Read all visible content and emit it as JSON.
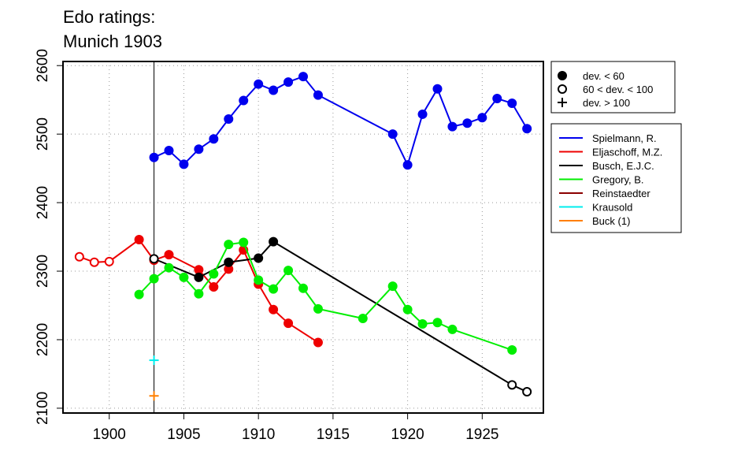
{
  "chart_data": {
    "type": "line",
    "title": [
      "Edo ratings:",
      "Munich 1903"
    ],
    "xlabel": "",
    "ylabel": "",
    "xlim": [
      1896.9,
      1929.1
    ],
    "ylim": [
      2093,
      2606
    ],
    "xticks": [
      1900,
      1905,
      1910,
      1915,
      1920,
      1925
    ],
    "yticks": [
      2100,
      2200,
      2300,
      2400,
      2500,
      2600
    ],
    "grid": true,
    "event_year": 1903,
    "marker_legend": [
      {
        "label": "dev. < 60",
        "marker": "filled"
      },
      {
        "label": "60 < dev. < 100",
        "marker": "open"
      },
      {
        "label": "dev. > 100",
        "marker": "plus"
      }
    ],
    "series": [
      {
        "name": "Spielmann, R.",
        "color": "#0000ee",
        "points": [
          {
            "x": 1903,
            "y": 2466,
            "m": "filled"
          },
          {
            "x": 1904,
            "y": 2476,
            "m": "filled"
          },
          {
            "x": 1905,
            "y": 2456,
            "m": "filled"
          },
          {
            "x": 1906,
            "y": 2478,
            "m": "filled"
          },
          {
            "x": 1907,
            "y": 2493,
            "m": "filled"
          },
          {
            "x": 1908,
            "y": 2522,
            "m": "filled"
          },
          {
            "x": 1909,
            "y": 2549,
            "m": "filled"
          },
          {
            "x": 1910,
            "y": 2573,
            "m": "filled"
          },
          {
            "x": 1911,
            "y": 2564,
            "m": "filled"
          },
          {
            "x": 1912,
            "y": 2576,
            "m": "filled"
          },
          {
            "x": 1913,
            "y": 2584,
            "m": "filled"
          },
          {
            "x": 1914,
            "y": 2557,
            "m": "filled"
          },
          {
            "x": 1919,
            "y": 2500,
            "m": "filled"
          },
          {
            "x": 1920,
            "y": 2455,
            "m": "filled"
          },
          {
            "x": 1921,
            "y": 2529,
            "m": "filled"
          },
          {
            "x": 1922,
            "y": 2566,
            "m": "filled"
          },
          {
            "x": 1923,
            "y": 2511,
            "m": "filled"
          },
          {
            "x": 1924,
            "y": 2516,
            "m": "filled"
          },
          {
            "x": 1925,
            "y": 2524,
            "m": "filled"
          },
          {
            "x": 1926,
            "y": 2552,
            "m": "filled"
          },
          {
            "x": 1927,
            "y": 2545,
            "m": "filled"
          },
          {
            "x": 1928,
            "y": 2508,
            "m": "filled"
          }
        ]
      },
      {
        "name": "Eljaschoff, M.Z.",
        "color": "#ee0000",
        "points": [
          {
            "x": 1898,
            "y": 2321,
            "m": "open"
          },
          {
            "x": 1899,
            "y": 2313,
            "m": "open"
          },
          {
            "x": 1900,
            "y": 2314,
            "m": "open"
          },
          {
            "x": 1902,
            "y": 2346,
            "m": "filled"
          },
          {
            "x": 1903,
            "y": 2316,
            "m": "filled"
          },
          {
            "x": 1904,
            "y": 2324,
            "m": "filled"
          },
          {
            "x": 1906,
            "y": 2302,
            "m": "filled"
          },
          {
            "x": 1907,
            "y": 2277,
            "m": "filled"
          },
          {
            "x": 1908,
            "y": 2303,
            "m": "filled"
          },
          {
            "x": 1909,
            "y": 2331,
            "m": "filled"
          },
          {
            "x": 1910,
            "y": 2281,
            "m": "filled"
          },
          {
            "x": 1911,
            "y": 2244,
            "m": "filled"
          },
          {
            "x": 1912,
            "y": 2224,
            "m": "filled"
          },
          {
            "x": 1914,
            "y": 2196,
            "m": "filled"
          }
        ]
      },
      {
        "name": "Busch, E.J.C.",
        "color": "#000000",
        "points": [
          {
            "x": 1903,
            "y": 2318,
            "m": "open"
          },
          {
            "x": 1906,
            "y": 2291,
            "m": "filled"
          },
          {
            "x": 1908,
            "y": 2313,
            "m": "filled"
          },
          {
            "x": 1910,
            "y": 2319,
            "m": "filled"
          },
          {
            "x": 1911,
            "y": 2343,
            "m": "filled"
          },
          {
            "x": 1927,
            "y": 2134,
            "m": "open"
          },
          {
            "x": 1928,
            "y": 2124,
            "m": "open"
          }
        ]
      },
      {
        "name": "Gregory, B.",
        "color": "#00ee00",
        "points": [
          {
            "x": 1902,
            "y": 2266,
            "m": "filled"
          },
          {
            "x": 1903,
            "y": 2289,
            "m": "filled"
          },
          {
            "x": 1904,
            "y": 2305,
            "m": "filled"
          },
          {
            "x": 1905,
            "y": 2291,
            "m": "filled"
          },
          {
            "x": 1906,
            "y": 2267,
            "m": "filled"
          },
          {
            "x": 1907,
            "y": 2296,
            "m": "filled"
          },
          {
            "x": 1908,
            "y": 2339,
            "m": "filled"
          },
          {
            "x": 1909,
            "y": 2342,
            "m": "filled"
          },
          {
            "x": 1910,
            "y": 2287,
            "m": "filled"
          },
          {
            "x": 1911,
            "y": 2274,
            "m": "filled"
          },
          {
            "x": 1912,
            "y": 2301,
            "m": "filled"
          },
          {
            "x": 1913,
            "y": 2275,
            "m": "filled"
          },
          {
            "x": 1914,
            "y": 2245,
            "m": "filled"
          },
          {
            "x": 1917,
            "y": 2231,
            "m": "filled"
          },
          {
            "x": 1919,
            "y": 2278,
            "m": "filled"
          },
          {
            "x": 1920,
            "y": 2244,
            "m": "filled"
          },
          {
            "x": 1921,
            "y": 2223,
            "m": "filled"
          },
          {
            "x": 1922,
            "y": 2225,
            "m": "filled"
          },
          {
            "x": 1923,
            "y": 2215,
            "m": "filled"
          },
          {
            "x": 1927,
            "y": 2185,
            "m": "filled"
          }
        ]
      },
      {
        "name": "Reinstaedter",
        "color": "#8b0000",
        "points": []
      },
      {
        "name": "Krausold",
        "color": "#00eeee",
        "points": [
          {
            "x": 1903,
            "y": 2170,
            "m": "plus"
          }
        ]
      },
      {
        "name": "Buck (1)",
        "color": "#ff7f00",
        "points": [
          {
            "x": 1903,
            "y": 2118,
            "m": "plus"
          }
        ]
      }
    ]
  }
}
